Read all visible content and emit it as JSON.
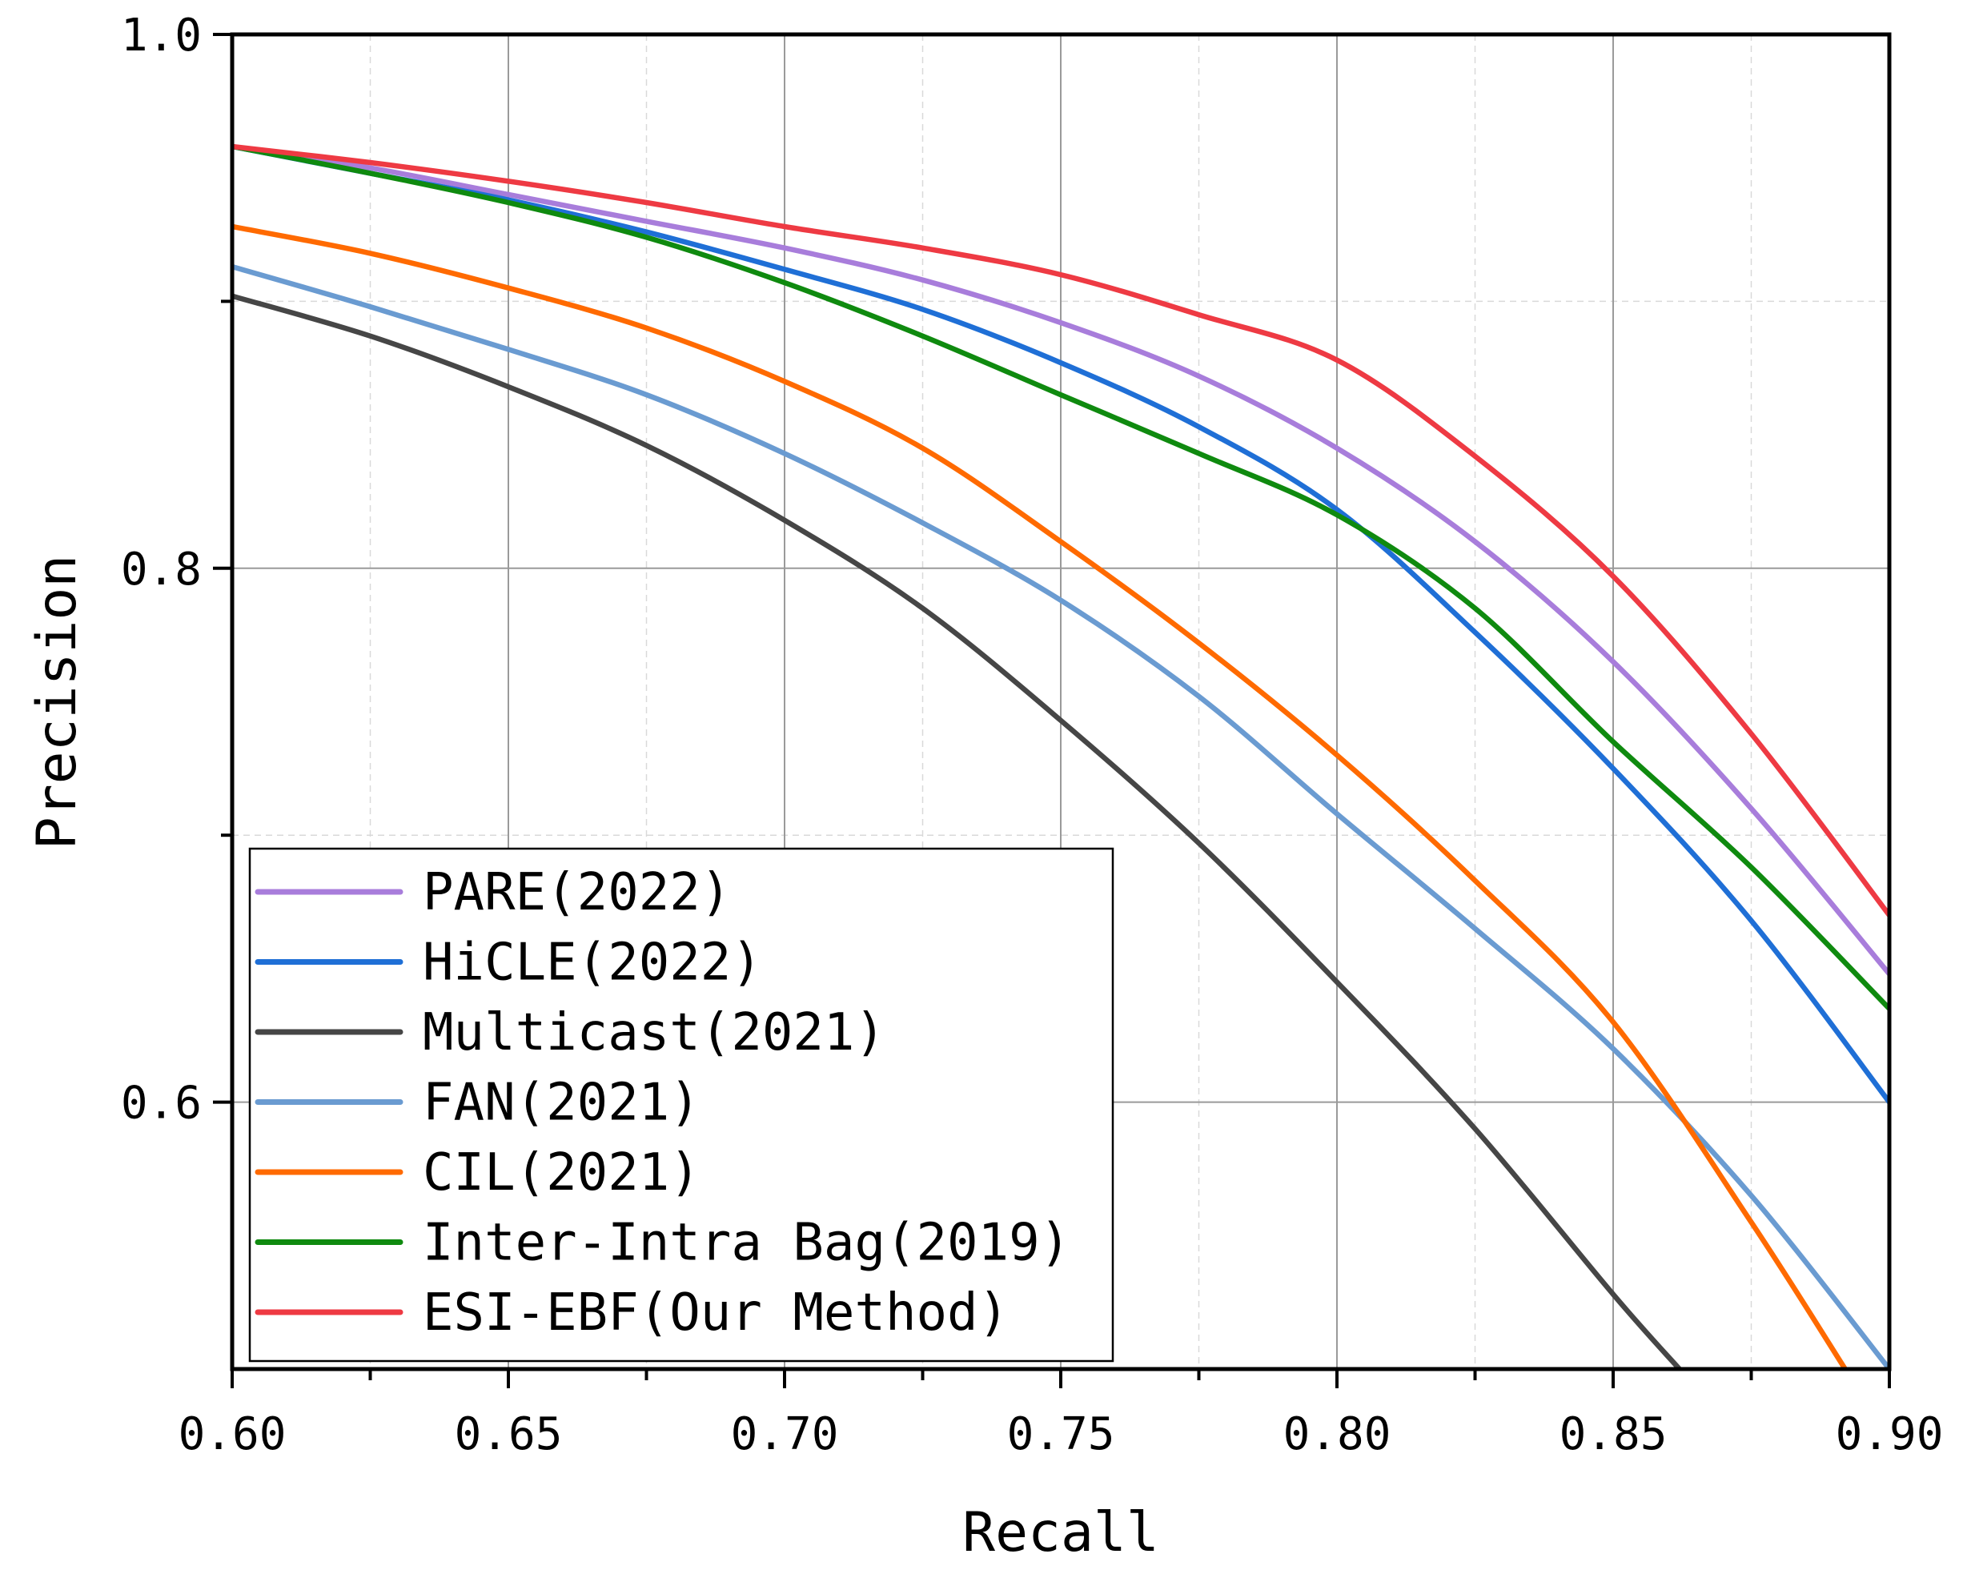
{
  "chart_data": {
    "type": "line",
    "title": "",
    "xlabel": "Recall",
    "ylabel": "Precision",
    "xlim": [
      0.6,
      0.9
    ],
    "ylim": [
      0.5,
      1.0
    ],
    "x_ticks": [
      "0.60",
      "0.65",
      "0.70",
      "0.75",
      "0.80",
      "0.85",
      "0.90"
    ],
    "x_tick_values": [
      0.6,
      0.65,
      0.7,
      0.75,
      0.8,
      0.85,
      0.9
    ],
    "y_ticks": [
      "0.6",
      "0.8",
      "1.0"
    ],
    "y_tick_values": [
      0.6,
      0.8,
      1.0
    ],
    "grid": true,
    "legend_position": "bottom-left",
    "series": [
      {
        "name": "PARE(2022)",
        "color": "#a87ddb",
        "x": [
          0.6,
          0.625,
          0.65,
          0.675,
          0.7,
          0.725,
          0.75,
          0.775,
          0.8,
          0.825,
          0.85,
          0.875,
          0.9
        ],
        "y": [
          0.958,
          0.95,
          0.94,
          0.93,
          0.92,
          0.908,
          0.892,
          0.872,
          0.845,
          0.81,
          0.765,
          0.71,
          0.648
        ]
      },
      {
        "name": "HiCLE(2022)",
        "color": "#1f6fd6",
        "x": [
          0.6,
          0.625,
          0.65,
          0.675,
          0.7,
          0.725,
          0.75,
          0.775,
          0.8,
          0.825,
          0.85,
          0.875,
          0.9
        ],
        "y": [
          0.958,
          0.948,
          0.938,
          0.926,
          0.912,
          0.897,
          0.877,
          0.853,
          0.822,
          0.776,
          0.725,
          0.668,
          0.6
        ]
      },
      {
        "name": "Multicast(2021)",
        "color": "#464646",
        "x": [
          0.6,
          0.625,
          0.65,
          0.675,
          0.7,
          0.725,
          0.75,
          0.775,
          0.8,
          0.825,
          0.85,
          0.862
        ],
        "y": [
          0.902,
          0.887,
          0.868,
          0.846,
          0.818,
          0.785,
          0.743,
          0.697,
          0.645,
          0.59,
          0.528,
          0.5
        ]
      },
      {
        "name": "FAN(2021)",
        "color": "#6a9bd1",
        "x": [
          0.6,
          0.625,
          0.65,
          0.675,
          0.7,
          0.725,
          0.75,
          0.775,
          0.8,
          0.825,
          0.85,
          0.875,
          0.9
        ],
        "y": [
          0.913,
          0.898,
          0.882,
          0.865,
          0.843,
          0.817,
          0.788,
          0.752,
          0.708,
          0.665,
          0.62,
          0.565,
          0.5
        ]
      },
      {
        "name": "CIL(2021)",
        "color": "#ff6a00",
        "x": [
          0.6,
          0.625,
          0.65,
          0.675,
          0.7,
          0.725,
          0.75,
          0.775,
          0.8,
          0.825,
          0.85,
          0.875,
          0.892
        ],
        "y": [
          0.928,
          0.918,
          0.905,
          0.89,
          0.87,
          0.845,
          0.81,
          0.772,
          0.73,
          0.683,
          0.63,
          0.555,
          0.5
        ]
      },
      {
        "name": "Inter-Intra Bag(2019)",
        "color": "#0f8a0f",
        "x": [
          0.6,
          0.625,
          0.65,
          0.675,
          0.7,
          0.725,
          0.75,
          0.775,
          0.8,
          0.825,
          0.85,
          0.875,
          0.9
        ],
        "y": [
          0.958,
          0.948,
          0.937,
          0.924,
          0.907,
          0.887,
          0.865,
          0.843,
          0.82,
          0.785,
          0.735,
          0.688,
          0.635
        ]
      },
      {
        "name": "ESI-EBF(Our Method)",
        "color": "#ee3a43",
        "x": [
          0.6,
          0.625,
          0.65,
          0.675,
          0.7,
          0.725,
          0.75,
          0.775,
          0.8,
          0.825,
          0.85,
          0.875,
          0.9
        ],
        "y": [
          0.958,
          0.952,
          0.945,
          0.937,
          0.928,
          0.92,
          0.91,
          0.895,
          0.878,
          0.842,
          0.797,
          0.738,
          0.67
        ]
      }
    ]
  }
}
